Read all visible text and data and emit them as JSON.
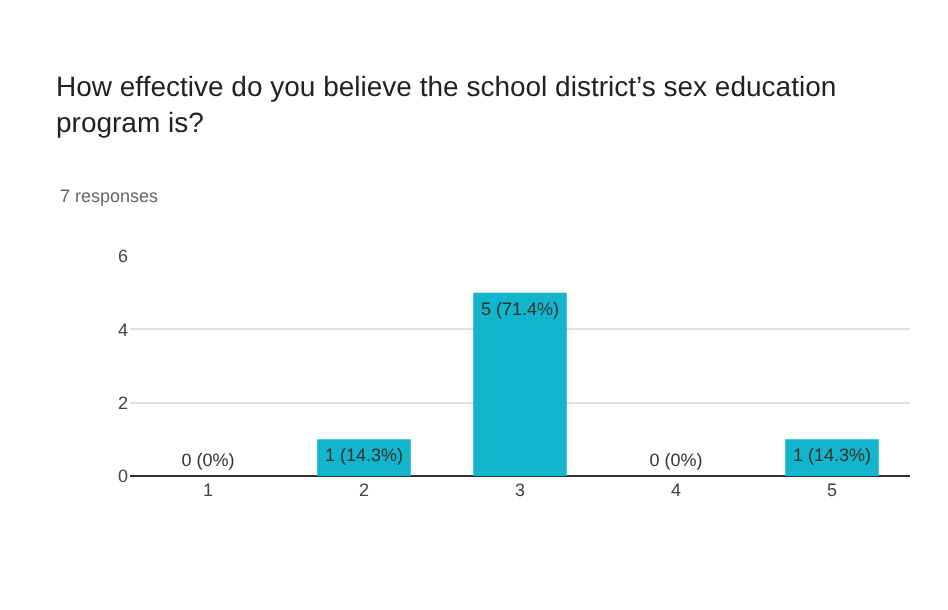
{
  "chart_data": {
    "type": "bar",
    "title": "How effective do you believe the school district’s sex education program is?",
    "subtitle": "7 responses",
    "categories": [
      "1",
      "2",
      "3",
      "4",
      "5"
    ],
    "values": [
      0,
      1,
      5,
      0,
      1
    ],
    "value_labels": [
      "0 (0%)",
      "1 (14.3%)",
      "5 (71.4%)",
      "0 (0%)",
      "1 (14.3%)"
    ],
    "color": "#12b5cb",
    "ylim": [
      0,
      6
    ],
    "yticks": [
      0,
      2,
      4,
      6
    ],
    "grid": "y"
  }
}
